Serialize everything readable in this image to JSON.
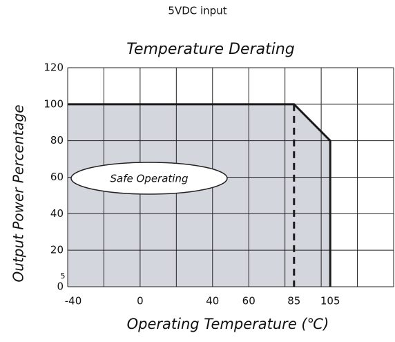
{
  "header": {
    "title": "5VDC input"
  },
  "chart_data": {
    "type": "line",
    "title": "Temperature Derating",
    "x_label": "Operating Temperature (℃)",
    "y_label": "Output Power Percentage",
    "xlim": [
      -40,
      140
    ],
    "ylim": [
      0,
      120
    ],
    "xticks": [
      -40,
      0,
      40,
      60,
      85,
      105
    ],
    "yticks": [
      0,
      20,
      40,
      60,
      80,
      100,
      120
    ],
    "xgrid": [
      -40,
      -20,
      0,
      20,
      40,
      60,
      80,
      100,
      120,
      140
    ],
    "grid": true,
    "series": [
      {
        "x": [
          -40,
          85,
          105,
          105
        ],
        "values": [
          100,
          100,
          80,
          0
        ],
        "color": "#1a1a1a",
        "fill": "#d4d6de"
      },
      {
        "x": [
          85,
          85
        ],
        "values": [
          100,
          0
        ],
        "color": "#1a1a1a",
        "dash": true
      }
    ],
    "annotations": [
      "Safe Operating",
      "5"
    ]
  }
}
